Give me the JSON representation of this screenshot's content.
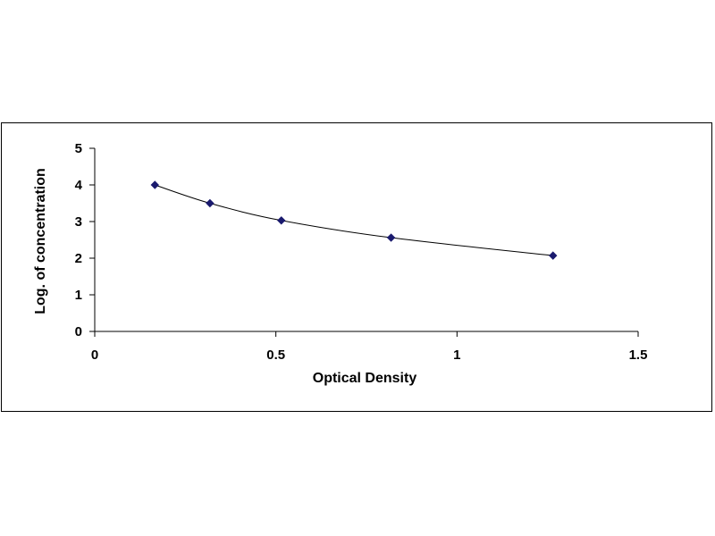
{
  "chart_data": {
    "type": "scatter",
    "title": "",
    "xlabel": "Optical Density",
    "ylabel": "Log. of concentration",
    "xlim": [
      0,
      1.5
    ],
    "ylim": [
      0,
      5
    ],
    "x_ticks": [
      "0",
      "0.5",
      "1",
      "1.5"
    ],
    "y_ticks": [
      "0",
      "1",
      "2",
      "3",
      "4",
      "5"
    ],
    "grid": false,
    "legend": "none",
    "marker": "diamond",
    "colors": {
      "marker": "#1a1a6e",
      "line": "#000000",
      "axis": "#000000"
    },
    "series": [
      {
        "x": [
          0.166,
          0.318,
          0.515,
          0.818,
          1.265
        ],
        "y": [
          4.0,
          3.5,
          3.03,
          2.56,
          2.07
        ]
      }
    ]
  }
}
